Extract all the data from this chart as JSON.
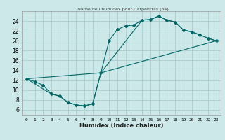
{
  "title": "Courbe de l'humidex pour Carpentras (84)",
  "xlabel": "Humidex (Indice chaleur)",
  "xlim": [
    -0.5,
    23.5
  ],
  "ylim": [
    5,
    26
  ],
  "xticks": [
    0,
    1,
    2,
    3,
    4,
    5,
    6,
    7,
    8,
    9,
    10,
    11,
    12,
    13,
    14,
    15,
    16,
    17,
    18,
    19,
    20,
    21,
    22,
    23
  ],
  "yticks": [
    6,
    8,
    10,
    12,
    14,
    16,
    18,
    20,
    22,
    24
  ],
  "bg_color": "#cce8e8",
  "line_color": "#006666",
  "grid_color": "#aacccc",
  "line1_x": [
    0,
    1,
    2,
    3,
    4,
    5,
    6,
    7,
    8,
    9,
    10,
    11,
    12,
    13,
    14,
    15,
    16,
    17,
    18,
    19,
    20,
    21,
    22,
    23
  ],
  "line1_y": [
    12.3,
    11.7,
    11.0,
    9.2,
    8.8,
    7.5,
    7.0,
    6.8,
    7.2,
    13.5,
    20.0,
    22.3,
    23.0,
    23.2,
    24.2,
    24.3,
    25.0,
    24.2,
    23.8,
    22.2,
    21.8,
    21.2,
    20.5,
    20.0
  ],
  "line2_x": [
    0,
    3,
    4,
    5,
    6,
    7,
    8,
    9,
    14,
    15,
    16,
    17,
    18,
    19,
    20,
    21,
    22,
    23
  ],
  "line2_y": [
    12.3,
    9.2,
    8.8,
    7.5,
    7.0,
    6.8,
    7.2,
    13.5,
    24.2,
    24.3,
    25.0,
    24.2,
    23.8,
    22.2,
    21.8,
    21.2,
    20.5,
    20.0
  ],
  "line3_x": [
    0,
    9,
    23
  ],
  "line3_y": [
    12.3,
    13.5,
    20.0
  ]
}
